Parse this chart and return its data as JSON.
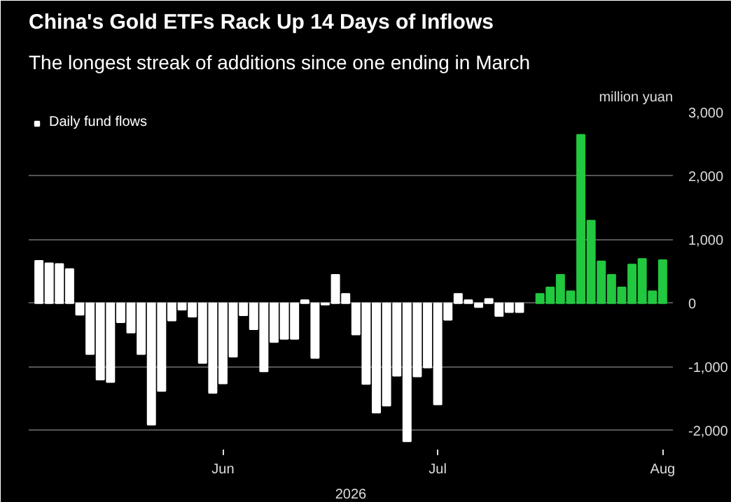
{
  "chart_data": {
    "type": "bar",
    "title": "China's Gold ETFs Rack Up 14 Days of Inflows",
    "subtitle": "The longest streak of additions since one ending in March",
    "xlabel": "2026",
    "ylabel": "million yuan",
    "categories": [
      null,
      null,
      null,
      null,
      null,
      null,
      null,
      null,
      null,
      null,
      null,
      null,
      null,
      null,
      null,
      null,
      null,
      null,
      "Jun",
      null,
      null,
      null,
      null,
      null,
      null,
      null,
      null,
      null,
      null,
      null,
      null,
      null,
      null,
      null,
      null,
      null,
      null,
      null,
      null,
      "Jul",
      null,
      null,
      null,
      null,
      null,
      null,
      null,
      null,
      null,
      null,
      null,
      null,
      null,
      null,
      null,
      null,
      null,
      null,
      null,
      null,
      null,
      "Aug"
    ],
    "series": [
      {
        "name": "Daily fund flows",
        "color": "#ffffff",
        "values": [
          670,
          630,
          620,
          540,
          -180,
          -800,
          -1200,
          -1240,
          -300,
          -460,
          -800,
          -1910,
          -1380,
          -270,
          -100,
          -210,
          -940,
          -1410,
          -1260,
          -840,
          -190,
          -410,
          -1070,
          -610,
          -560,
          -560,
          50,
          -860,
          -20,
          450,
          150,
          -490,
          -1270,
          -1720,
          -1610,
          -1140,
          -2170,
          -1150,
          -1010,
          -1590,
          -260,
          150,
          50,
          -60,
          70,
          -200,
          -140,
          -140,
          null,
          150,
          250,
          450,
          190,
          2650,
          1300,
          660,
          450,
          250,
          610,
          700,
          190,
          680
        ],
        "colors": [
          "#ffffff",
          "#ffffff",
          "#ffffff",
          "#ffffff",
          "#ffffff",
          "#ffffff",
          "#ffffff",
          "#ffffff",
          "#ffffff",
          "#ffffff",
          "#ffffff",
          "#ffffff",
          "#ffffff",
          "#ffffff",
          "#ffffff",
          "#ffffff",
          "#ffffff",
          "#ffffff",
          "#ffffff",
          "#ffffff",
          "#ffffff",
          "#ffffff",
          "#ffffff",
          "#ffffff",
          "#ffffff",
          "#ffffff",
          "#ffffff",
          "#ffffff",
          "#ffffff",
          "#ffffff",
          "#ffffff",
          "#ffffff",
          "#ffffff",
          "#ffffff",
          "#ffffff",
          "#ffffff",
          "#ffffff",
          "#ffffff",
          "#ffffff",
          "#ffffff",
          "#ffffff",
          "#ffffff",
          "#ffffff",
          "#ffffff",
          "#ffffff",
          "#ffffff",
          "#ffffff",
          "#ffffff",
          "#ffffff",
          "#22c83f",
          "#22c83f",
          "#22c83f",
          "#22c83f",
          "#22c83f",
          "#22c83f",
          "#22c83f",
          "#22c83f",
          "#22c83f",
          "#22c83f",
          "#22c83f",
          "#22c83f",
          "#22c83f"
        ]
      }
    ],
    "ylim": [
      -2300,
      3000
    ],
    "yticks": [
      {
        "value": -2000,
        "label": "-2,000"
      },
      {
        "value": -1000,
        "label": "-1,000"
      },
      0,
      {
        "value": 1000,
        "label": "1,000"
      },
      {
        "value": 2000,
        "label": "2,000"
      },
      {
        "value": 3000,
        "label": "3,000"
      }
    ],
    "grid": "y",
    "legend": "top left"
  }
}
